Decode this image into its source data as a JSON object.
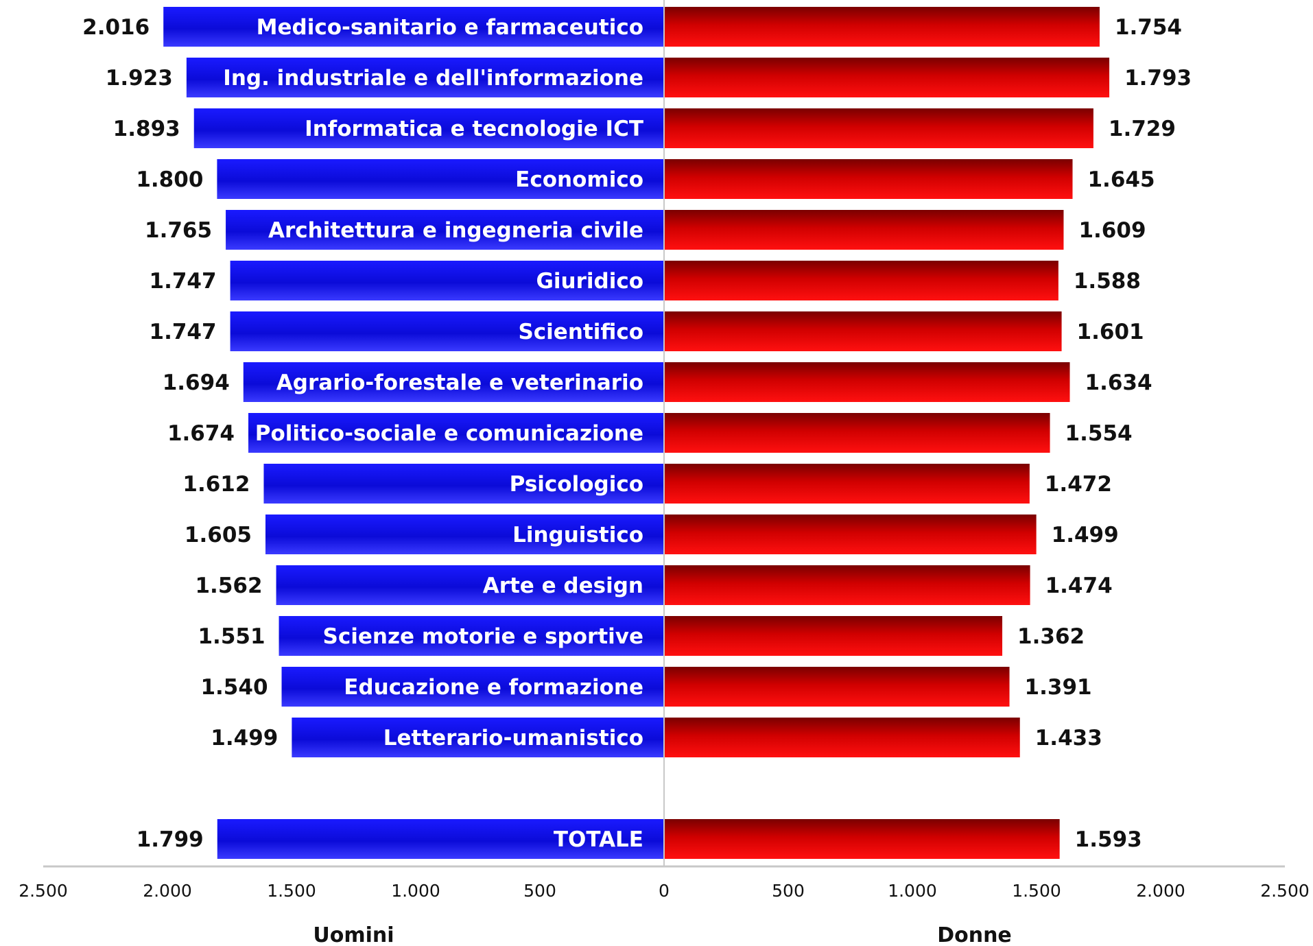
{
  "chart_data": {
    "type": "bar",
    "orientation": "horizontal-diverging",
    "categories": [
      "Medico-sanitario e farmaceutico",
      "Ing. industriale e dell'informazione",
      "Informatica e tecnologie ICT",
      "Economico",
      "Architettura e ingegneria civile",
      "Giuridico",
      "Scientifico",
      "Agrario-forestale e veterinario",
      "Politico-sociale e comunicazione",
      "Psicologico",
      "Linguistico",
      "Arte e design",
      "Scienze motorie e sportive",
      "Educazione e formazione",
      "Letterario-umanistico",
      "TOTALE"
    ],
    "series": [
      {
        "name": "Uomini",
        "side": "left",
        "color": "#0a0ae0",
        "values": [
          2016,
          1923,
          1893,
          1800,
          1765,
          1747,
          1747,
          1694,
          1674,
          1612,
          1605,
          1562,
          1551,
          1540,
          1499,
          1799
        ],
        "value_labels": [
          "2.016",
          "1.923",
          "1.893",
          "1.800",
          "1.765",
          "1.747",
          "1.747",
          "1.694",
          "1.674",
          "1.612",
          "1.605",
          "1.562",
          "1.551",
          "1.540",
          "1.499",
          "1.799"
        ]
      },
      {
        "name": "Donne",
        "side": "right",
        "color": "#e00000",
        "values": [
          1754,
          1793,
          1729,
          1645,
          1609,
          1588,
          1601,
          1634,
          1554,
          1472,
          1499,
          1474,
          1362,
          1391,
          1433,
          1593
        ],
        "value_labels": [
          "1.754",
          "1.793",
          "1.729",
          "1.645",
          "1.609",
          "1.588",
          "1.601",
          "1.634",
          "1.554",
          "1.472",
          "1.499",
          "1.474",
          "1.362",
          "1.391",
          "1.433",
          "1.593"
        ]
      }
    ],
    "xlim": [
      -2500,
      2500
    ],
    "x_ticks": [
      -2500,
      -2000,
      -1500,
      -1000,
      -500,
      0,
      500,
      1000,
      1500,
      2000,
      2500
    ],
    "x_tick_labels": [
      "2.500",
      "2.000",
      "1.500",
      "1.000",
      "500",
      "0",
      "500",
      "1.000",
      "1.500",
      "2.000",
      "2.500"
    ],
    "xlabel_left": "Uomini",
    "xlabel_right": "Donne",
    "title": "",
    "grid": false,
    "legend": "none"
  }
}
